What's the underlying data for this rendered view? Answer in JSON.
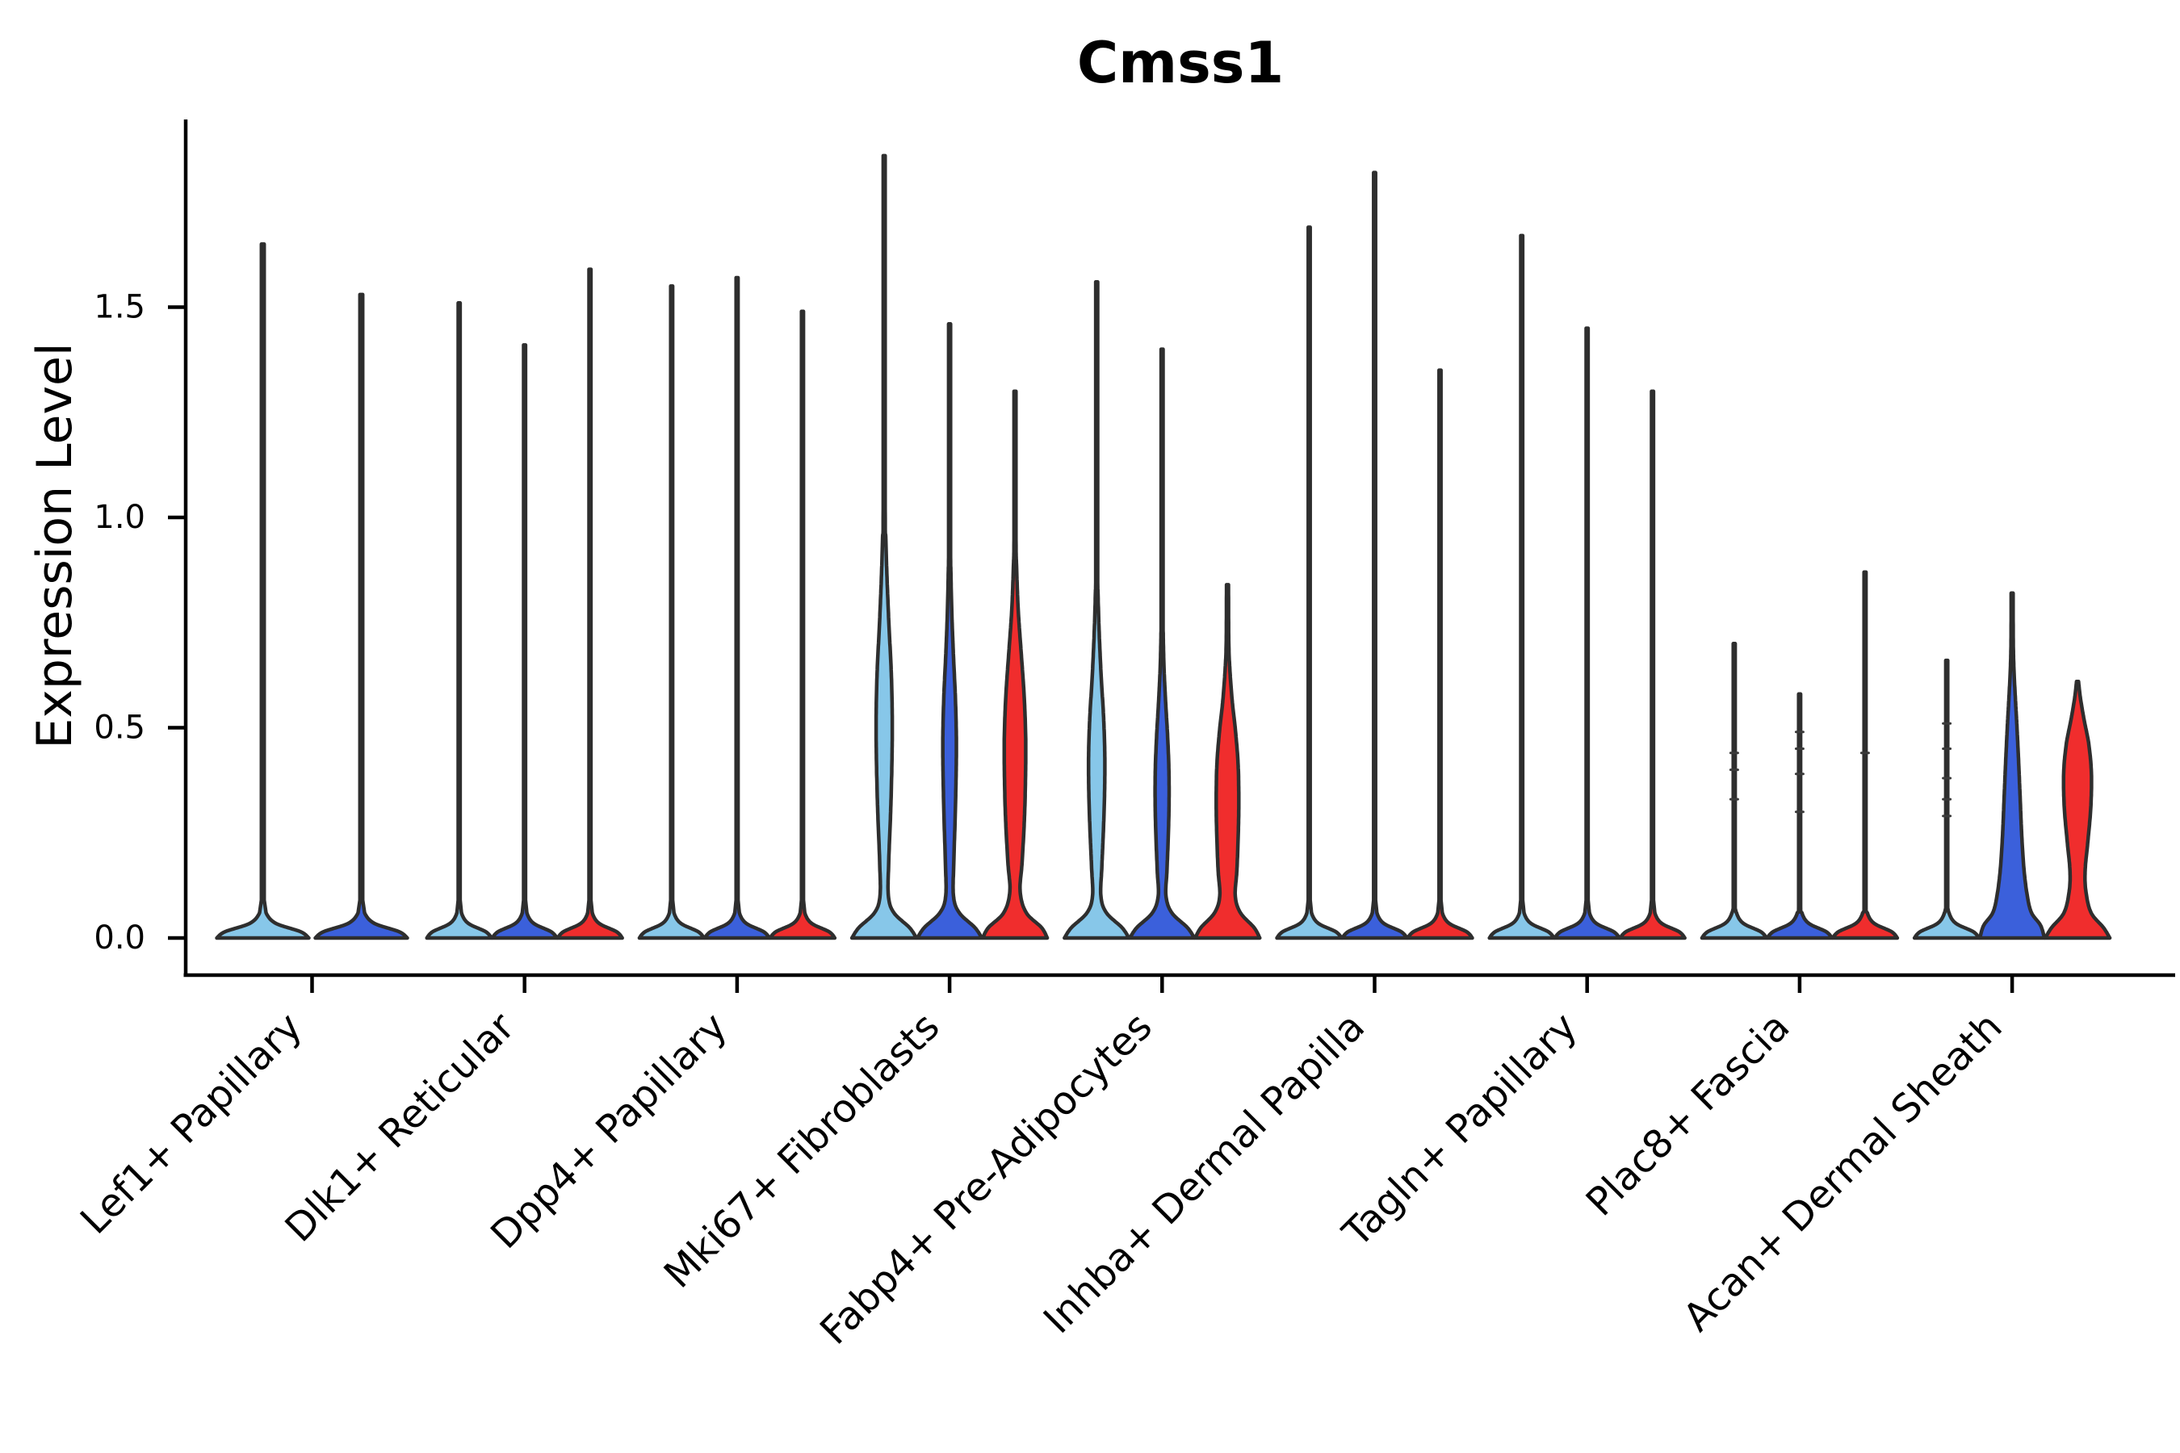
{
  "chart_data": {
    "type": "violin",
    "title": "Cmss1",
    "ylabel": "Expression Level",
    "xlabel": "",
    "y_tick_labels": [
      "0.0",
      "0.5",
      "1.0",
      "1.5"
    ],
    "y_tick_values": [
      0.0,
      0.5,
      1.0,
      1.5
    ],
    "ylim": [
      0,
      1.95
    ],
    "grid": false,
    "legend": "none",
    "split_order": [
      "light_blue",
      "blue",
      "red"
    ],
    "colors": {
      "light_blue": "#87C7E9",
      "blue": "#3B60DB",
      "red": "#F02D2D",
      "edge": "#2E2E2E",
      "axis": "#000000",
      "dash": "#3A3A3A"
    },
    "categories": [
      {
        "label": "Lef1+ Papillary",
        "violins": [
          {
            "split": "light_blue",
            "max": 1.65,
            "shape": "thin"
          },
          {
            "split": "blue",
            "max": 1.53,
            "shape": "thin"
          }
        ]
      },
      {
        "label": "Dlk1+ Reticular",
        "violins": [
          {
            "split": "light_blue",
            "max": 1.51,
            "shape": "thin"
          },
          {
            "split": "blue",
            "max": 1.41,
            "shape": "thin"
          },
          {
            "split": "red",
            "max": 1.59,
            "shape": "thin"
          }
        ]
      },
      {
        "label": "Dpp4+ Papillary",
        "violins": [
          {
            "split": "light_blue",
            "max": 1.55,
            "shape": "thin"
          },
          {
            "split": "blue",
            "max": 1.57,
            "shape": "thin"
          },
          {
            "split": "red",
            "max": 1.49,
            "shape": "thin"
          }
        ]
      },
      {
        "label": "Mki67+ Fibroblasts",
        "violins": [
          {
            "split": "light_blue",
            "max": 1.86,
            "shape": "custom",
            "profile": [
              [
                0,
                1
              ],
              [
                0.025,
                0.78
              ],
              [
                0.06,
                0.3
              ],
              [
                0.1,
                0.13
              ],
              [
                0.18,
                0.14
              ],
              [
                0.3,
                0.2
              ],
              [
                0.42,
                0.24
              ],
              [
                0.52,
                0.25
              ],
              [
                0.63,
                0.22
              ],
              [
                0.74,
                0.15
              ],
              [
                0.85,
                0.09
              ],
              [
                0.95,
                0.05
              ],
              [
                1.05,
                0.03
              ],
              [
                1.86,
                0.03
              ]
            ]
          },
          {
            "split": "blue",
            "max": 1.46,
            "shape": "custom",
            "profile": [
              [
                0,
                1
              ],
              [
                0.025,
                0.78
              ],
              [
                0.06,
                0.3
              ],
              [
                0.1,
                0.12
              ],
              [
                0.18,
                0.13
              ],
              [
                0.28,
                0.17
              ],
              [
                0.38,
                0.2
              ],
              [
                0.47,
                0.21
              ],
              [
                0.57,
                0.18
              ],
              [
                0.67,
                0.12
              ],
              [
                0.77,
                0.07
              ],
              [
                0.87,
                0.04
              ],
              [
                0.95,
                0.03
              ],
              [
                1.46,
                0.03
              ]
            ]
          },
          {
            "split": "red",
            "max": 1.3,
            "shape": "custom",
            "profile": [
              [
                0,
                1
              ],
              [
                0.025,
                0.82
              ],
              [
                0.06,
                0.35
              ],
              [
                0.11,
                0.16
              ],
              [
                0.18,
                0.22
              ],
              [
                0.28,
                0.29
              ],
              [
                0.38,
                0.325
              ],
              [
                0.48,
                0.33
              ],
              [
                0.58,
                0.28
              ],
              [
                0.68,
                0.19
              ],
              [
                0.78,
                0.1
              ],
              [
                0.88,
                0.05
              ],
              [
                0.96,
                0.03
              ],
              [
                1.3,
                0.03
              ]
            ]
          }
        ]
      },
      {
        "label": "Fabp4+ Pre-Adipocytes",
        "violins": [
          {
            "split": "light_blue",
            "max": 1.56,
            "shape": "custom",
            "profile": [
              [
                0,
                1
              ],
              [
                0.025,
                0.78
              ],
              [
                0.06,
                0.3
              ],
              [
                0.1,
                0.13
              ],
              [
                0.17,
                0.16
              ],
              [
                0.26,
                0.21
              ],
              [
                0.35,
                0.245
              ],
              [
                0.44,
                0.25
              ],
              [
                0.53,
                0.21
              ],
              [
                0.62,
                0.14
              ],
              [
                0.72,
                0.08
              ],
              [
                0.82,
                0.04
              ],
              [
                0.9,
                0.03
              ],
              [
                1.56,
                0.03
              ]
            ]
          },
          {
            "split": "blue",
            "max": 1.4,
            "shape": "custom",
            "profile": [
              [
                0,
                1
              ],
              [
                0.025,
                0.78
              ],
              [
                0.06,
                0.3
              ],
              [
                0.1,
                0.12
              ],
              [
                0.16,
                0.15
              ],
              [
                0.24,
                0.19
              ],
              [
                0.32,
                0.215
              ],
              [
                0.4,
                0.21
              ],
              [
                0.48,
                0.17
              ],
              [
                0.56,
                0.11
              ],
              [
                0.64,
                0.06
              ],
              [
                0.72,
                0.035
              ],
              [
                0.8,
                0.03
              ],
              [
                1.4,
                0.03
              ]
            ]
          },
          {
            "split": "red",
            "max": 0.84,
            "shape": "custom",
            "profile": [
              [
                0,
                1
              ],
              [
                0.025,
                0.82
              ],
              [
                0.06,
                0.4
              ],
              [
                0.1,
                0.24
              ],
              [
                0.16,
                0.29
              ],
              [
                0.24,
                0.33
              ],
              [
                0.32,
                0.35
              ],
              [
                0.41,
                0.33
              ],
              [
                0.49,
                0.25
              ],
              [
                0.56,
                0.15
              ],
              [
                0.63,
                0.08
              ],
              [
                0.7,
                0.04
              ],
              [
                0.84,
                0.03
              ]
            ]
          }
        ]
      },
      {
        "label": "Inhba+ Dermal Papilla",
        "violins": [
          {
            "split": "light_blue",
            "max": 1.69,
            "shape": "thin"
          },
          {
            "split": "blue",
            "max": 1.82,
            "shape": "thin"
          },
          {
            "split": "red",
            "max": 1.35,
            "shape": "thin"
          }
        ]
      },
      {
        "label": "Tagln+ Papillary",
        "violins": [
          {
            "split": "light_blue",
            "max": 1.67,
            "shape": "thin"
          },
          {
            "split": "blue",
            "max": 1.45,
            "shape": "thin"
          },
          {
            "split": "red",
            "max": 1.3,
            "shape": "thin"
          }
        ]
      },
      {
        "label": "Plac8+ Fascia",
        "violins": [
          {
            "split": "light_blue",
            "max": 0.7,
            "shape": "thin",
            "dashes": [
              0.33,
              0.4,
              0.44
            ]
          },
          {
            "split": "blue",
            "max": 0.58,
            "shape": "thin",
            "dashes": [
              0.3,
              0.39,
              0.45,
              0.49
            ]
          },
          {
            "split": "red",
            "max": 0.87,
            "shape": "thin",
            "dashes": [
              0.44
            ]
          }
        ]
      },
      {
        "label": "Acan+ Dermal Sheath",
        "violins": [
          {
            "split": "light_blue",
            "max": 0.66,
            "shape": "thin",
            "dashes": [
              0.29,
              0.33,
              0.38,
              0.45,
              0.51
            ]
          },
          {
            "split": "blue",
            "max": 0.82,
            "shape": "custom",
            "profile": [
              [
                0,
                1
              ],
              [
                0.03,
                0.88
              ],
              [
                0.06,
                0.6
              ],
              [
                0.1,
                0.47
              ],
              [
                0.16,
                0.37
              ],
              [
                0.24,
                0.3
              ],
              [
                0.33,
                0.25
              ],
              [
                0.42,
                0.2
              ],
              [
                0.5,
                0.15
              ],
              [
                0.57,
                0.1
              ],
              [
                0.63,
                0.06
              ],
              [
                0.7,
                0.035
              ],
              [
                0.82,
                0.03
              ]
            ]
          },
          {
            "split": "red",
            "max": 0.61,
            "shape": "custom",
            "profile": [
              [
                0,
                1
              ],
              [
                0.025,
                0.8
              ],
              [
                0.06,
                0.42
              ],
              [
                0.11,
                0.26
              ],
              [
                0.16,
                0.235
              ],
              [
                0.23,
                0.32
              ],
              [
                0.31,
                0.41
              ],
              [
                0.39,
                0.43
              ],
              [
                0.46,
                0.35
              ],
              [
                0.52,
                0.2
              ],
              [
                0.57,
                0.09
              ],
              [
                0.61,
                0.03
              ]
            ]
          }
        ]
      }
    ]
  }
}
